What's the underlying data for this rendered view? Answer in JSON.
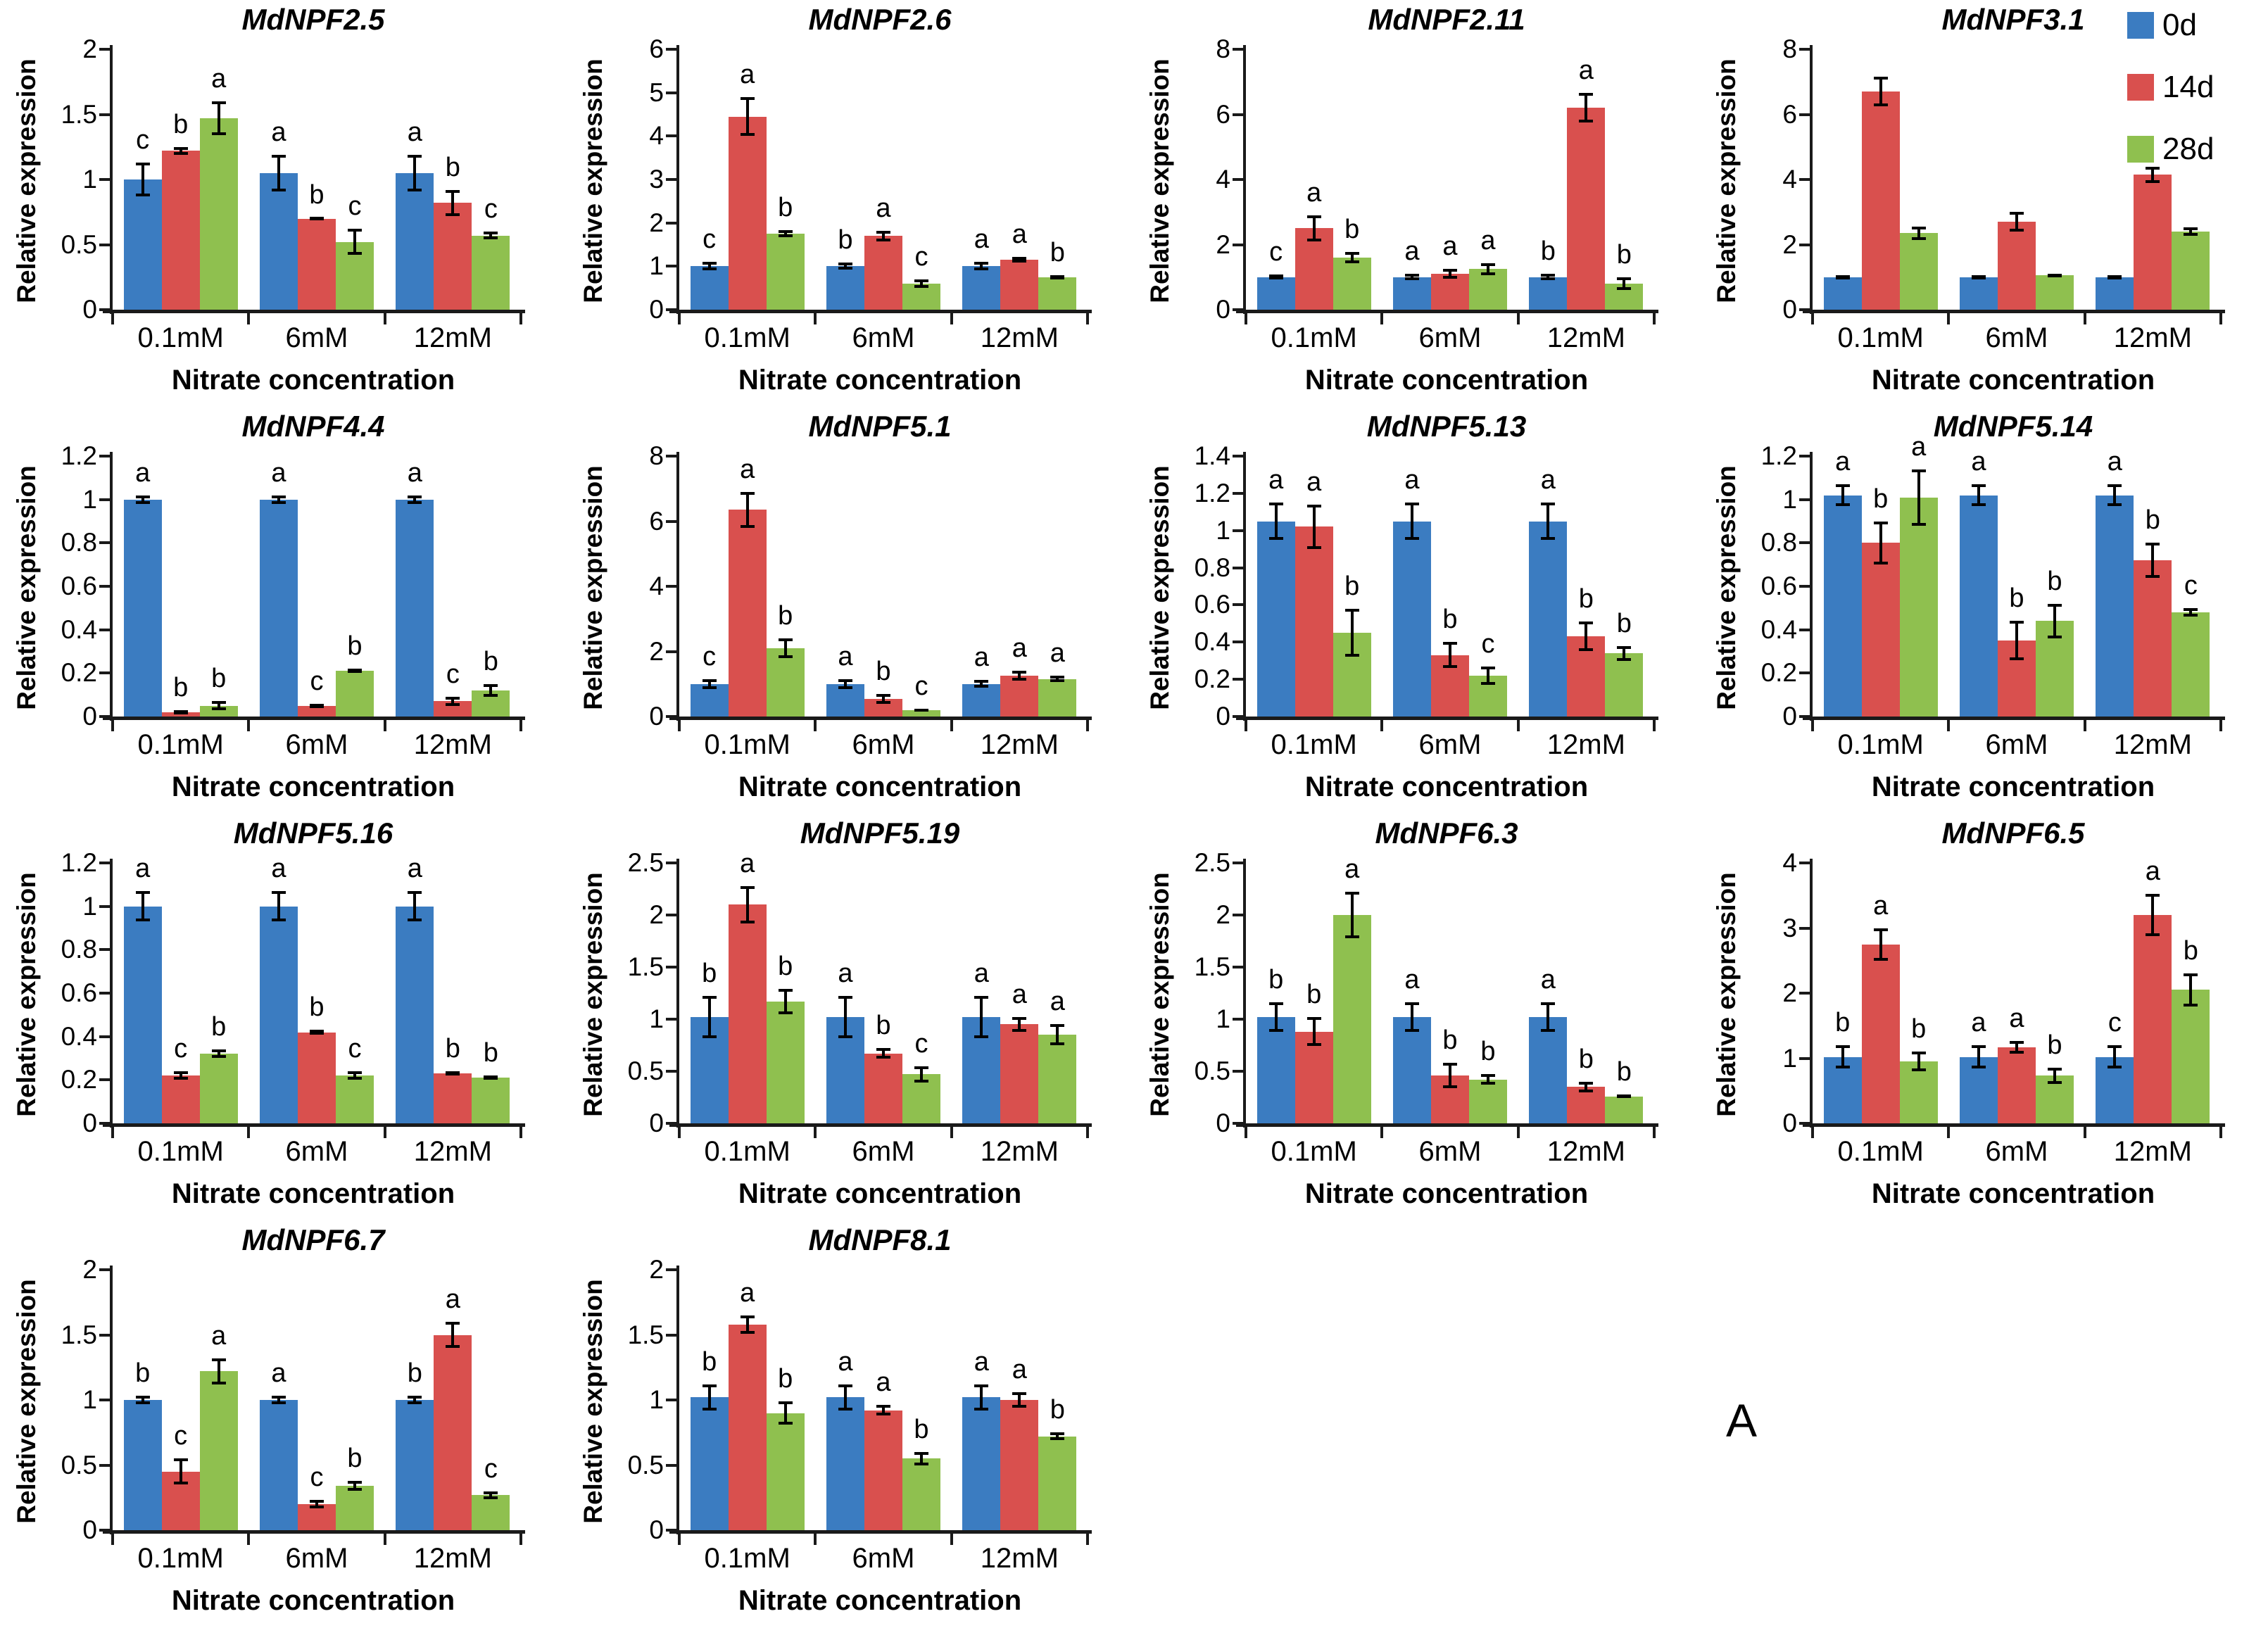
{
  "panel_label": "A",
  "axis": {
    "xlabel": "Nitrate concentration",
    "ylabel": "Relative expression"
  },
  "legend": {
    "position": "top-right",
    "items": [
      {
        "label": "0d",
        "color": "#3b7cc1"
      },
      {
        "label": "14d",
        "color": "#d9504e"
      },
      {
        "label": "28d",
        "color": "#8fc04f"
      }
    ]
  },
  "chart_data": [
    {
      "type": "bar",
      "title": "MdNPF2.5",
      "xlabel": "Nitrate concentration",
      "ylabel": "Relative expression",
      "categories": [
        "0.1mM",
        "6mM",
        "12mM"
      ],
      "ymax": 2,
      "yticks": [
        "0",
        "0.5",
        "1",
        "1.5",
        "2"
      ],
      "series": [
        {
          "name": "0d",
          "values": [
            1.0,
            1.05,
            1.05
          ],
          "errors": [
            0.13,
            0.14,
            0.14
          ],
          "letters": [
            "c",
            "a",
            "a"
          ]
        },
        {
          "name": "14d",
          "values": [
            1.22,
            0.7,
            0.82
          ],
          "errors": [
            0.03,
            0.01,
            0.1
          ],
          "letters": [
            "b",
            "b",
            "b"
          ]
        },
        {
          "name": "28d",
          "values": [
            1.47,
            0.52,
            0.57
          ],
          "errors": [
            0.13,
            0.1,
            0.03
          ],
          "letters": [
            "a",
            "c",
            "c"
          ]
        }
      ]
    },
    {
      "type": "bar",
      "title": "MdNPF2.6",
      "xlabel": "Nitrate concentration",
      "ylabel": "Relative expression",
      "categories": [
        "0.1mM",
        "6mM",
        "12mM"
      ],
      "ymax": 6,
      "yticks": [
        "0",
        "1",
        "2",
        "3",
        "4",
        "5",
        "6"
      ],
      "series": [
        {
          "name": "0d",
          "values": [
            1.0,
            1.0,
            1.0
          ],
          "errors": [
            0.1,
            0.08,
            0.1
          ],
          "letters": [
            "c",
            "b",
            "a"
          ]
        },
        {
          "name": "14d",
          "values": [
            4.45,
            1.7,
            1.15
          ],
          "errors": [
            0.45,
            0.12,
            0.07
          ],
          "letters": [
            "a",
            "a",
            "a"
          ]
        },
        {
          "name": "28d",
          "values": [
            1.75,
            0.6,
            0.75
          ],
          "errors": [
            0.08,
            0.1,
            0.05
          ],
          "letters": [
            "b",
            "c",
            "b"
          ]
        }
      ]
    },
    {
      "type": "bar",
      "title": "MdNPF2.11",
      "xlabel": "Nitrate concentration",
      "ylabel": "Relative expression",
      "categories": [
        "0.1mM",
        "6mM",
        "12mM"
      ],
      "ymax": 8,
      "yticks": [
        "0",
        "2",
        "4",
        "6",
        "8"
      ],
      "series": [
        {
          "name": "0d",
          "values": [
            1.0,
            1.0,
            1.0
          ],
          "errors": [
            0.08,
            0.1,
            0.1
          ],
          "letters": [
            "c",
            "a",
            "b"
          ]
        },
        {
          "name": "14d",
          "values": [
            2.5,
            1.1,
            6.2
          ],
          "errors": [
            0.4,
            0.15,
            0.45
          ],
          "letters": [
            "a",
            "a",
            "a"
          ]
        },
        {
          "name": "28d",
          "values": [
            1.6,
            1.25,
            0.8
          ],
          "errors": [
            0.18,
            0.18,
            0.2
          ],
          "letters": [
            "b",
            "a",
            "b"
          ]
        }
      ]
    },
    {
      "type": "bar",
      "title": "MdNPF3.1",
      "xlabel": "Nitrate concentration",
      "ylabel": "Relative expression",
      "categories": [
        "0.1mM",
        "6mM",
        "12mM"
      ],
      "ymax": 8,
      "yticks": [
        "0",
        "2",
        "4",
        "6",
        "8"
      ],
      "series": [
        {
          "name": "0d",
          "values": [
            1.0,
            1.0,
            1.0
          ],
          "errors": [
            0.07,
            0.07,
            0.07
          ]
        },
        {
          "name": "14d",
          "values": [
            6.7,
            2.7,
            4.15
          ],
          "errors": [
            0.45,
            0.3,
            0.25
          ]
        },
        {
          "name": "28d",
          "values": [
            2.35,
            1.05,
            2.4
          ],
          "errors": [
            0.2,
            0.05,
            0.12
          ]
        }
      ]
    },
    {
      "type": "bar",
      "title": "MdNPF4.4",
      "xlabel": "Nitrate concentration",
      "ylabel": "Relative expression",
      "categories": [
        "0.1mM",
        "6mM",
        "12mM"
      ],
      "ymax": 1.2,
      "yticks": [
        "0",
        "0.2",
        "0.4",
        "0.6",
        "0.8",
        "1",
        "1.2"
      ],
      "series": [
        {
          "name": "0d",
          "values": [
            1.0,
            1.0,
            1.0
          ],
          "errors": [
            0.02,
            0.02,
            0.02
          ],
          "letters": [
            "a",
            "a",
            "a"
          ]
        },
        {
          "name": "14d",
          "values": [
            0.02,
            0.05,
            0.07
          ],
          "errors": [
            0.01,
            0.01,
            0.02
          ],
          "letters": [
            "b",
            "c",
            "c"
          ]
        },
        {
          "name": "28d",
          "values": [
            0.05,
            0.21,
            0.12
          ],
          "errors": [
            0.02,
            0.01,
            0.03
          ],
          "letters": [
            "b",
            "b",
            "b"
          ]
        }
      ]
    },
    {
      "type": "bar",
      "title": "MdNPF5.1",
      "xlabel": "Nitrate concentration",
      "ylabel": "Relative expression",
      "categories": [
        "0.1mM",
        "6mM",
        "12mM"
      ],
      "ymax": 8,
      "yticks": [
        "0",
        "2",
        "4",
        "6",
        "8"
      ],
      "series": [
        {
          "name": "0d",
          "values": [
            1.0,
            1.0,
            1.0
          ],
          "errors": [
            0.15,
            0.15,
            0.12
          ],
          "letters": [
            "c",
            "a",
            "a"
          ]
        },
        {
          "name": "14d",
          "values": [
            6.35,
            0.55,
            1.25
          ],
          "errors": [
            0.55,
            0.15,
            0.15
          ],
          "letters": [
            "a",
            "b",
            "a"
          ]
        },
        {
          "name": "28d",
          "values": [
            2.1,
            0.2,
            1.15
          ],
          "errors": [
            0.3,
            0.04,
            0.1
          ],
          "letters": [
            "b",
            "c",
            "a"
          ]
        }
      ]
    },
    {
      "type": "bar",
      "title": "MdNPF5.13",
      "xlabel": "Nitrate concentration",
      "ylabel": "Relative expression",
      "categories": [
        "0.1mM",
        "6mM",
        "12mM"
      ],
      "ymax": 1.4,
      "yticks": [
        "0",
        "0.2",
        "0.4",
        "0.6",
        "0.8",
        "1",
        "1.2",
        "1.4"
      ],
      "series": [
        {
          "name": "0d",
          "values": [
            1.05,
            1.05,
            1.05
          ],
          "errors": [
            0.1,
            0.1,
            0.1
          ],
          "letters": [
            "a",
            "a",
            "a"
          ]
        },
        {
          "name": "14d",
          "values": [
            1.02,
            0.33,
            0.43
          ],
          "errors": [
            0.12,
            0.07,
            0.08
          ],
          "letters": [
            "a",
            "b",
            "b"
          ]
        },
        {
          "name": "28d",
          "values": [
            0.45,
            0.22,
            0.34
          ],
          "errors": [
            0.13,
            0.05,
            0.04
          ],
          "letters": [
            "b",
            "c",
            "b"
          ]
        }
      ]
    },
    {
      "type": "bar",
      "title": "MdNPF5.14",
      "xlabel": "Nitrate concentration",
      "ylabel": "Relative expression",
      "categories": [
        "0.1mM",
        "6mM",
        "12mM"
      ],
      "ymax": 1.2,
      "yticks": [
        "0",
        "0.2",
        "0.4",
        "0.6",
        "0.8",
        "1",
        "1.2"
      ],
      "series": [
        {
          "name": "0d",
          "values": [
            1.02,
            1.02,
            1.02
          ],
          "errors": [
            0.05,
            0.05,
            0.05
          ],
          "letters": [
            "a",
            "a",
            "a"
          ]
        },
        {
          "name": "14d",
          "values": [
            0.8,
            0.35,
            0.72
          ],
          "errors": [
            0.1,
            0.09,
            0.08
          ],
          "letters": [
            "b",
            "b",
            "b"
          ]
        },
        {
          "name": "28d",
          "values": [
            1.01,
            0.44,
            0.48
          ],
          "errors": [
            0.13,
            0.08,
            0.02
          ],
          "letters": [
            "a",
            "b",
            "c"
          ]
        }
      ]
    },
    {
      "type": "bar",
      "title": "MdNPF5.16",
      "xlabel": "Nitrate concentration",
      "ylabel": "Relative expression",
      "categories": [
        "0.1mM",
        "6mM",
        "12mM"
      ],
      "ymax": 1.2,
      "yticks": [
        "0",
        "0.2",
        "0.4",
        "0.6",
        "0.8",
        "1",
        "1.2"
      ],
      "series": [
        {
          "name": "0d",
          "values": [
            1.0,
            1.0,
            1.0
          ],
          "errors": [
            0.07,
            0.07,
            0.07
          ],
          "letters": [
            "a",
            "a",
            "a"
          ]
        },
        {
          "name": "14d",
          "values": [
            0.22,
            0.42,
            0.23
          ],
          "errors": [
            0.02,
            0.01,
            0.01
          ],
          "letters": [
            "c",
            "b",
            "b"
          ]
        },
        {
          "name": "28d",
          "values": [
            0.32,
            0.22,
            0.21
          ],
          "errors": [
            0.02,
            0.02,
            0.01
          ],
          "letters": [
            "b",
            "c",
            "b"
          ]
        }
      ]
    },
    {
      "type": "bar",
      "title": "MdNPF5.19",
      "xlabel": "Nitrate concentration",
      "ylabel": "Relative expression",
      "categories": [
        "0.1mM",
        "6mM",
        "12mM"
      ],
      "ymax": 2.5,
      "yticks": [
        "0",
        "0.5",
        "1",
        "1.5",
        "2",
        "2.5"
      ],
      "series": [
        {
          "name": "0d",
          "values": [
            1.02,
            1.02,
            1.02
          ],
          "errors": [
            0.2,
            0.2,
            0.2
          ],
          "letters": [
            "b",
            "a",
            "a"
          ]
        },
        {
          "name": "14d",
          "values": [
            2.1,
            0.67,
            0.95
          ],
          "errors": [
            0.18,
            0.05,
            0.07
          ],
          "letters": [
            "a",
            "b",
            "a"
          ]
        },
        {
          "name": "28d",
          "values": [
            1.17,
            0.47,
            0.85
          ],
          "errors": [
            0.12,
            0.08,
            0.1
          ],
          "letters": [
            "b",
            "c",
            "a"
          ]
        }
      ]
    },
    {
      "type": "bar",
      "title": "MdNPF6.3",
      "xlabel": "Nitrate concentration",
      "ylabel": "Relative expression",
      "categories": [
        "0.1mM",
        "6mM",
        "12mM"
      ],
      "ymax": 2.5,
      "yticks": [
        "0",
        "0.5",
        "1",
        "1.5",
        "2",
        "2.5"
      ],
      "series": [
        {
          "name": "0d",
          "values": [
            1.02,
            1.02,
            1.02
          ],
          "errors": [
            0.14,
            0.14,
            0.14
          ],
          "letters": [
            "b",
            "a",
            "a"
          ]
        },
        {
          "name": "14d",
          "values": [
            0.88,
            0.46,
            0.35
          ],
          "errors": [
            0.14,
            0.12,
            0.05
          ],
          "letters": [
            "b",
            "b",
            "b"
          ]
        },
        {
          "name": "28d",
          "values": [
            2.0,
            0.42,
            0.26
          ],
          "errors": [
            0.22,
            0.05,
            0.02
          ],
          "letters": [
            "a",
            "b",
            "b"
          ]
        }
      ]
    },
    {
      "type": "bar",
      "title": "MdNPF6.5",
      "xlabel": "Nitrate concentration",
      "ylabel": "Relative expression",
      "categories": [
        "0.1mM",
        "6mM",
        "12mM"
      ],
      "ymax": 4,
      "yticks": [
        "0",
        "1",
        "2",
        "3",
        "4"
      ],
      "series": [
        {
          "name": "0d",
          "values": [
            1.02,
            1.02,
            1.02
          ],
          "errors": [
            0.18,
            0.18,
            0.18
          ],
          "letters": [
            "b",
            "a",
            "c"
          ]
        },
        {
          "name": "14d",
          "values": [
            2.75,
            1.17,
            3.2
          ],
          "errors": [
            0.25,
            0.1,
            0.32
          ],
          "letters": [
            "a",
            "a",
            "a"
          ]
        },
        {
          "name": "28d",
          "values": [
            0.95,
            0.73,
            2.05
          ],
          "errors": [
            0.15,
            0.12,
            0.25
          ],
          "letters": [
            "b",
            "b",
            "b"
          ]
        }
      ]
    },
    {
      "type": "bar",
      "title": "MdNPF6.7",
      "xlabel": "Nitrate concentration",
      "ylabel": "Relative expression",
      "categories": [
        "0.1mM",
        "6mM",
        "12mM"
      ],
      "ymax": 2,
      "yticks": [
        "0",
        "0.5",
        "1",
        "1.5",
        "2"
      ],
      "series": [
        {
          "name": "0d",
          "values": [
            1.0,
            1.0,
            1.0
          ],
          "errors": [
            0.03,
            0.03,
            0.03
          ],
          "letters": [
            "b",
            "a",
            "b"
          ]
        },
        {
          "name": "14d",
          "values": [
            0.45,
            0.2,
            1.5
          ],
          "errors": [
            0.1,
            0.03,
            0.1
          ],
          "letters": [
            "c",
            "c",
            "a"
          ]
        },
        {
          "name": "28d",
          "values": [
            1.22,
            0.34,
            0.27
          ],
          "errors": [
            0.1,
            0.04,
            0.03
          ],
          "letters": [
            "a",
            "b",
            "c"
          ]
        }
      ]
    },
    {
      "type": "bar",
      "title": "MdNPF8.1",
      "xlabel": "Nitrate concentration",
      "ylabel": "Relative expression",
      "categories": [
        "0.1mM",
        "6mM",
        "12mM"
      ],
      "ymax": 2,
      "yticks": [
        "0",
        "0.5",
        "1",
        "1.5",
        "2"
      ],
      "series": [
        {
          "name": "0d",
          "values": [
            1.02,
            1.02,
            1.02
          ],
          "errors": [
            0.1,
            0.1,
            0.1
          ],
          "letters": [
            "b",
            "a",
            "a"
          ]
        },
        {
          "name": "14d",
          "values": [
            1.58,
            0.92,
            1.0
          ],
          "errors": [
            0.07,
            0.04,
            0.06
          ],
          "letters": [
            "a",
            "a",
            "a"
          ]
        },
        {
          "name": "28d",
          "values": [
            0.9,
            0.55,
            0.72
          ],
          "errors": [
            0.09,
            0.05,
            0.03
          ],
          "letters": [
            "b",
            "b",
            "b"
          ]
        }
      ]
    }
  ]
}
